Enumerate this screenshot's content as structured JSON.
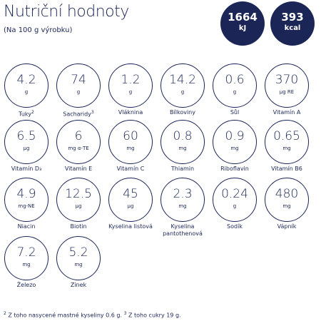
{
  "header": {
    "title": "Nutriční hodnoty",
    "subtitle": "(Na 100 g výrobku)"
  },
  "energy": [
    {
      "value": 1664,
      "unit": "kJ"
    },
    {
      "value": 393,
      "unit": "kcal"
    }
  ],
  "nutrients": [
    {
      "value": 4.2,
      "unit": "g",
      "label": "Tuky",
      "note": "2"
    },
    {
      "value": 74,
      "unit": "g",
      "label": "Sacharidy",
      "note": "3"
    },
    {
      "value": 1.2,
      "unit": "g",
      "label": "Vláknina"
    },
    {
      "value": 14.2,
      "unit": "g",
      "label": "Bílkoviny"
    },
    {
      "value": 0.6,
      "unit": "g",
      "label": "Sůl"
    },
    {
      "value": 370,
      "unit": "μg RE",
      "label": "Vitamín A"
    },
    {
      "value": 6.5,
      "unit": "μg",
      "label": "Vitamín D₃"
    },
    {
      "value": 6,
      "unit": "mg α-TE",
      "label": "Vitamín E"
    },
    {
      "value": 60,
      "unit": "mg",
      "label": "Vitamín C"
    },
    {
      "value": 0.8,
      "unit": "mg",
      "label": "Thiamin"
    },
    {
      "value": 0.9,
      "unit": "mg",
      "label": "Riboflavin"
    },
    {
      "value": 0.65,
      "unit": "mg",
      "label": "Vitamín B6"
    },
    {
      "value": 4.9,
      "unit": "mg-NE",
      "label": "Niacin"
    },
    {
      "value": 12.5,
      "unit": "μg",
      "label": "Biotin"
    },
    {
      "value": 45,
      "unit": "μg",
      "label": "Kyselina listová"
    },
    {
      "value": 2.3,
      "unit": "mg",
      "label": "Kyselina pantothenová"
    },
    {
      "value": 0.24,
      "unit": "g",
      "label": "Sodík"
    },
    {
      "value": 480,
      "unit": "mg",
      "label": "Vápník"
    },
    {
      "value": 7.2,
      "unit": "mg",
      "label": "Železo"
    },
    {
      "value": 5.2,
      "unit": "mg",
      "label": "Zinek"
    }
  ],
  "footnotes": [
    {
      "mark": "2",
      "text": "Z toho nasycené mastné kyseliny 0.6 g."
    },
    {
      "mark": "3",
      "text": "Z toho cukry 19 g."
    }
  ]
}
